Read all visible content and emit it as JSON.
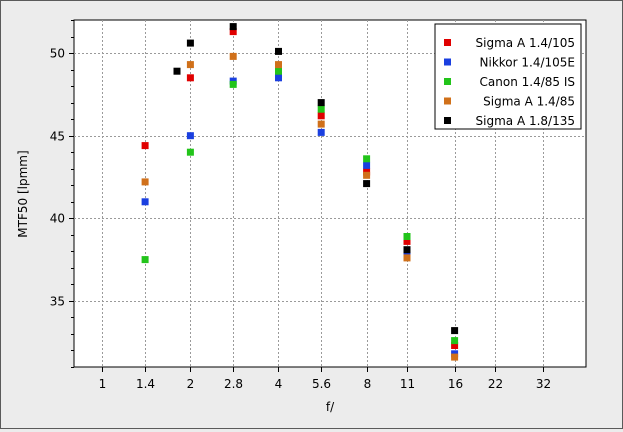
{
  "chart_data": {
    "type": "scatter",
    "title": "",
    "xlabel": "f/",
    "ylabel": "MTF50 [lpmm]",
    "x_scale": "log2 (aperture f-number)",
    "x_ticks": [
      "1",
      "1.4",
      "2",
      "2.8",
      "4",
      "5.6",
      "8",
      "11",
      "16",
      "22",
      "32"
    ],
    "xlim": [
      "0.8",
      "45"
    ],
    "y_ticks": [
      35,
      40,
      45,
      50
    ],
    "ylim": [
      31,
      52
    ],
    "grid": true,
    "legend_position": "top-right",
    "series": [
      {
        "name": "Sigma A 1.4/105",
        "color": "#e00000",
        "points": [
          {
            "x": "1.4",
            "y": 44.4
          },
          {
            "x": "2",
            "y": 48.5
          },
          {
            "x": "2.8",
            "y": 51.3
          },
          {
            "x": "4",
            "y": 48.7
          },
          {
            "x": "5.6",
            "y": 46.2
          },
          {
            "x": "8",
            "y": 42.8
          },
          {
            "x": "11",
            "y": 38.6
          },
          {
            "x": "16",
            "y": 32.3
          }
        ]
      },
      {
        "name": "Nikkor 1.4/105E",
        "color": "#1a3fe0",
        "points": [
          {
            "x": "1.4",
            "y": 41.0
          },
          {
            "x": "2",
            "y": 45.0
          },
          {
            "x": "2.8",
            "y": 48.3
          },
          {
            "x": "4",
            "y": 48.5
          },
          {
            "x": "5.6",
            "y": 45.2
          },
          {
            "x": "8",
            "y": 43.2
          },
          {
            "x": "11",
            "y": 37.8
          },
          {
            "x": "16",
            "y": 31.8
          }
        ]
      },
      {
        "name": "Canon 1.4/85 IS",
        "color": "#22c41a",
        "points": [
          {
            "x": "1.4",
            "y": 37.5
          },
          {
            "x": "2",
            "y": 44.0
          },
          {
            "x": "2.8",
            "y": 48.1
          },
          {
            "x": "4",
            "y": 48.9
          },
          {
            "x": "5.6",
            "y": 46.6
          },
          {
            "x": "8",
            "y": 43.6
          },
          {
            "x": "11",
            "y": 38.9
          },
          {
            "x": "16",
            "y": 32.6
          }
        ]
      },
      {
        "name": "Sigma A 1.4/85",
        "color": "#d0701a",
        "points": [
          {
            "x": "1.4",
            "y": 42.2
          },
          {
            "x": "2",
            "y": 49.3
          },
          {
            "x": "2.8",
            "y": 49.8
          },
          {
            "x": "4",
            "y": 49.3
          },
          {
            "x": "5.6",
            "y": 45.7
          },
          {
            "x": "8",
            "y": 42.6
          },
          {
            "x": "11",
            "y": 37.6
          },
          {
            "x": "16",
            "y": 31.6
          }
        ]
      },
      {
        "name": "Sigma A 1.8/135",
        "color": "#000000",
        "points": [
          {
            "x": "1.8",
            "y": 48.9
          },
          {
            "x": "2",
            "y": 50.6
          },
          {
            "x": "2.8",
            "y": 51.6
          },
          {
            "x": "4",
            "y": 50.1
          },
          {
            "x": "5.6",
            "y": 47.0
          },
          {
            "x": "8",
            "y": 42.1
          },
          {
            "x": "11",
            "y": 38.1
          },
          {
            "x": "16",
            "y": 33.2
          }
        ]
      }
    ]
  }
}
